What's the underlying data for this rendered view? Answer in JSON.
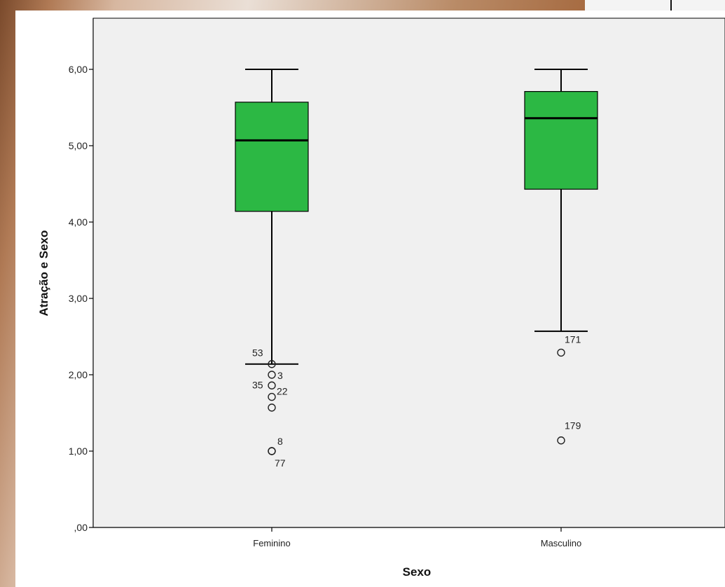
{
  "chart_data": {
    "type": "boxplot",
    "title": "",
    "xlabel": "Sexo",
    "ylabel": "Atração e Sexo",
    "ylim": [
      0,
      6.5
    ],
    "y_ticks": [
      {
        "value": 0,
        "label": ",00"
      },
      {
        "value": 1,
        "label": "1,00"
      },
      {
        "value": 2,
        "label": "2,00"
      },
      {
        "value": 3,
        "label": "3,00"
      },
      {
        "value": 4,
        "label": "4,00"
      },
      {
        "value": 5,
        "label": "5,00"
      },
      {
        "value": 6,
        "label": "6,00"
      }
    ],
    "grid": false,
    "colors": {
      "box": "#2cb844",
      "plot_background": "#f0f0f0"
    },
    "categories": [
      "Feminino",
      "Masculino"
    ],
    "boxes": [
      {
        "category": "Feminino",
        "whisker_low": 2.14,
        "q1": 4.14,
        "median": 5.07,
        "q3": 5.57,
        "whisker_high": 6.0,
        "outliers": [
          {
            "value": 2.14,
            "label": "53"
          },
          {
            "value": 2.0,
            "label": "3"
          },
          {
            "value": 1.86,
            "label": "35"
          },
          {
            "value": 1.71,
            "label": "22"
          },
          {
            "value": 1.57,
            "label": ""
          },
          {
            "value": 1.0,
            "label": "8"
          },
          {
            "value": 1.0,
            "label": "77"
          }
        ]
      },
      {
        "category": "Masculino",
        "whisker_low": 2.57,
        "q1": 4.43,
        "median": 5.36,
        "q3": 5.71,
        "whisker_high": 6.0,
        "outliers": [
          {
            "value": 2.29,
            "label": "171"
          },
          {
            "value": 1.14,
            "label": "179"
          }
        ]
      }
    ]
  }
}
